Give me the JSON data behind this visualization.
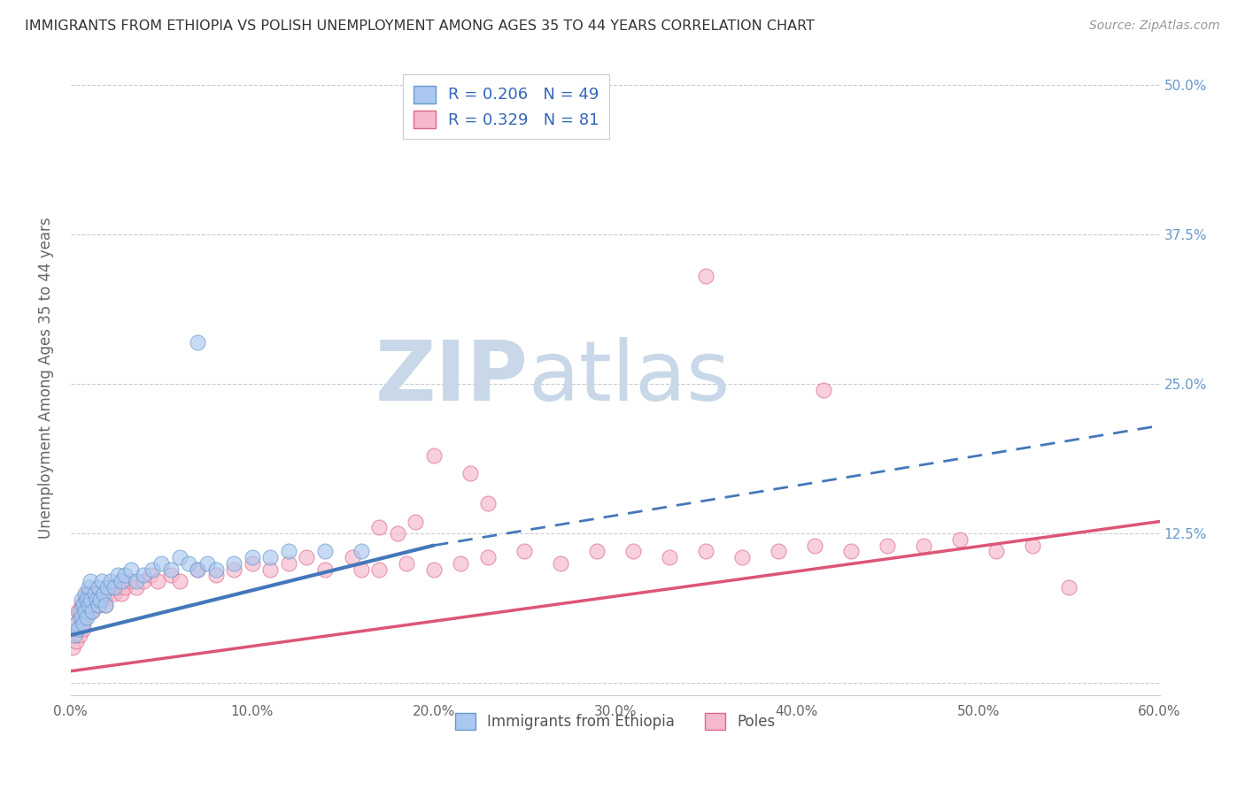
{
  "title": "IMMIGRANTS FROM ETHIOPIA VS POLISH UNEMPLOYMENT AMONG AGES 35 TO 44 YEARS CORRELATION CHART",
  "source": "Source: ZipAtlas.com",
  "ylabel": "Unemployment Among Ages 35 to 44 years",
  "xlim": [
    0.0,
    0.6
  ],
  "ylim": [
    -0.01,
    0.52
  ],
  "yticks": [
    0.0,
    0.125,
    0.25,
    0.375,
    0.5
  ],
  "ytick_labels": [
    "",
    "12.5%",
    "25.0%",
    "37.5%",
    "50.0%"
  ],
  "xticks": [
    0.0,
    0.1,
    0.2,
    0.3,
    0.4,
    0.5,
    0.6
  ],
  "xtick_labels": [
    "0.0%",
    "10.0%",
    "20.0%",
    "30.0%",
    "40.0%",
    "50.0%",
    "60.0%"
  ],
  "legend_r1": "R = 0.206",
  "legend_n1": "N = 49",
  "legend_r2": "R = 0.329",
  "legend_n2": "N = 81",
  "series1_color": "#aac8f0",
  "series1_edge": "#6699cc",
  "series2_color": "#f5b8cc",
  "series2_edge": "#dd6688",
  "trendline1_color": "#4477bb",
  "trendline2_color": "#dd5577",
  "background_color": "#ffffff",
  "grid_color": "#cccccc",
  "title_color": "#333333",
  "axis_label_color": "#666666",
  "tick_label_color_right": "#6699cc",
  "watermark_zip_color": "#c8d8e8",
  "watermark_atlas_color": "#c8d8e8",
  "s1_x": [
    0.002,
    0.003,
    0.004,
    0.005,
    0.006,
    0.006,
    0.007,
    0.007,
    0.008,
    0.008,
    0.009,
    0.009,
    0.01,
    0.01,
    0.011,
    0.011,
    0.012,
    0.013,
    0.014,
    0.015,
    0.015,
    0.016,
    0.017,
    0.018,
    0.019,
    0.02,
    0.022,
    0.024,
    0.026,
    0.028,
    0.03,
    0.033,
    0.036,
    0.04,
    0.045,
    0.05,
    0.055,
    0.06,
    0.065,
    0.07,
    0.075,
    0.08,
    0.09,
    0.1,
    0.11,
    0.12,
    0.14,
    0.16,
    0.07
  ],
  "s1_y": [
    0.04,
    0.05,
    0.045,
    0.06,
    0.055,
    0.07,
    0.05,
    0.065,
    0.06,
    0.075,
    0.055,
    0.07,
    0.065,
    0.08,
    0.07,
    0.085,
    0.06,
    0.075,
    0.07,
    0.065,
    0.08,
    0.07,
    0.085,
    0.075,
    0.065,
    0.08,
    0.085,
    0.08,
    0.09,
    0.085,
    0.09,
    0.095,
    0.085,
    0.09,
    0.095,
    0.1,
    0.095,
    0.105,
    0.1,
    0.095,
    0.1,
    0.095,
    0.1,
    0.105,
    0.105,
    0.11,
    0.11,
    0.11,
    0.285
  ],
  "s2_x": [
    0.001,
    0.002,
    0.003,
    0.003,
    0.004,
    0.004,
    0.005,
    0.005,
    0.006,
    0.006,
    0.007,
    0.007,
    0.008,
    0.008,
    0.009,
    0.009,
    0.01,
    0.01,
    0.011,
    0.011,
    0.012,
    0.012,
    0.013,
    0.014,
    0.015,
    0.016,
    0.017,
    0.018,
    0.019,
    0.02,
    0.022,
    0.024,
    0.026,
    0.028,
    0.03,
    0.033,
    0.036,
    0.04,
    0.044,
    0.048,
    0.055,
    0.06,
    0.07,
    0.08,
    0.09,
    0.1,
    0.11,
    0.12,
    0.13,
    0.14,
    0.155,
    0.17,
    0.185,
    0.2,
    0.215,
    0.23,
    0.25,
    0.27,
    0.29,
    0.31,
    0.33,
    0.35,
    0.37,
    0.39,
    0.41,
    0.43,
    0.45,
    0.47,
    0.49,
    0.51,
    0.53,
    0.55,
    0.35,
    0.415,
    0.2,
    0.22,
    0.23,
    0.17,
    0.18,
    0.19,
    0.16
  ],
  "s2_y": [
    0.03,
    0.04,
    0.035,
    0.05,
    0.045,
    0.06,
    0.04,
    0.055,
    0.05,
    0.065,
    0.045,
    0.06,
    0.055,
    0.07,
    0.06,
    0.075,
    0.065,
    0.075,
    0.06,
    0.075,
    0.06,
    0.07,
    0.065,
    0.075,
    0.065,
    0.07,
    0.075,
    0.07,
    0.065,
    0.075,
    0.08,
    0.075,
    0.08,
    0.075,
    0.08,
    0.085,
    0.08,
    0.085,
    0.09,
    0.085,
    0.09,
    0.085,
    0.095,
    0.09,
    0.095,
    0.1,
    0.095,
    0.1,
    0.105,
    0.095,
    0.105,
    0.095,
    0.1,
    0.095,
    0.1,
    0.105,
    0.11,
    0.1,
    0.11,
    0.11,
    0.105,
    0.11,
    0.105,
    0.11,
    0.115,
    0.11,
    0.115,
    0.115,
    0.12,
    0.11,
    0.115,
    0.08,
    0.34,
    0.245,
    0.19,
    0.175,
    0.15,
    0.13,
    0.125,
    0.135,
    0.095
  ],
  "trendline1_x0": 0.0,
  "trendline1_y0": 0.04,
  "trendline1_x1": 0.2,
  "trendline1_y1": 0.115,
  "trendline1_xd": 0.6,
  "trendline1_yd": 0.215,
  "trendline2_x0": 0.0,
  "trendline2_y0": 0.01,
  "trendline2_x1": 0.6,
  "trendline2_y1": 0.135
}
